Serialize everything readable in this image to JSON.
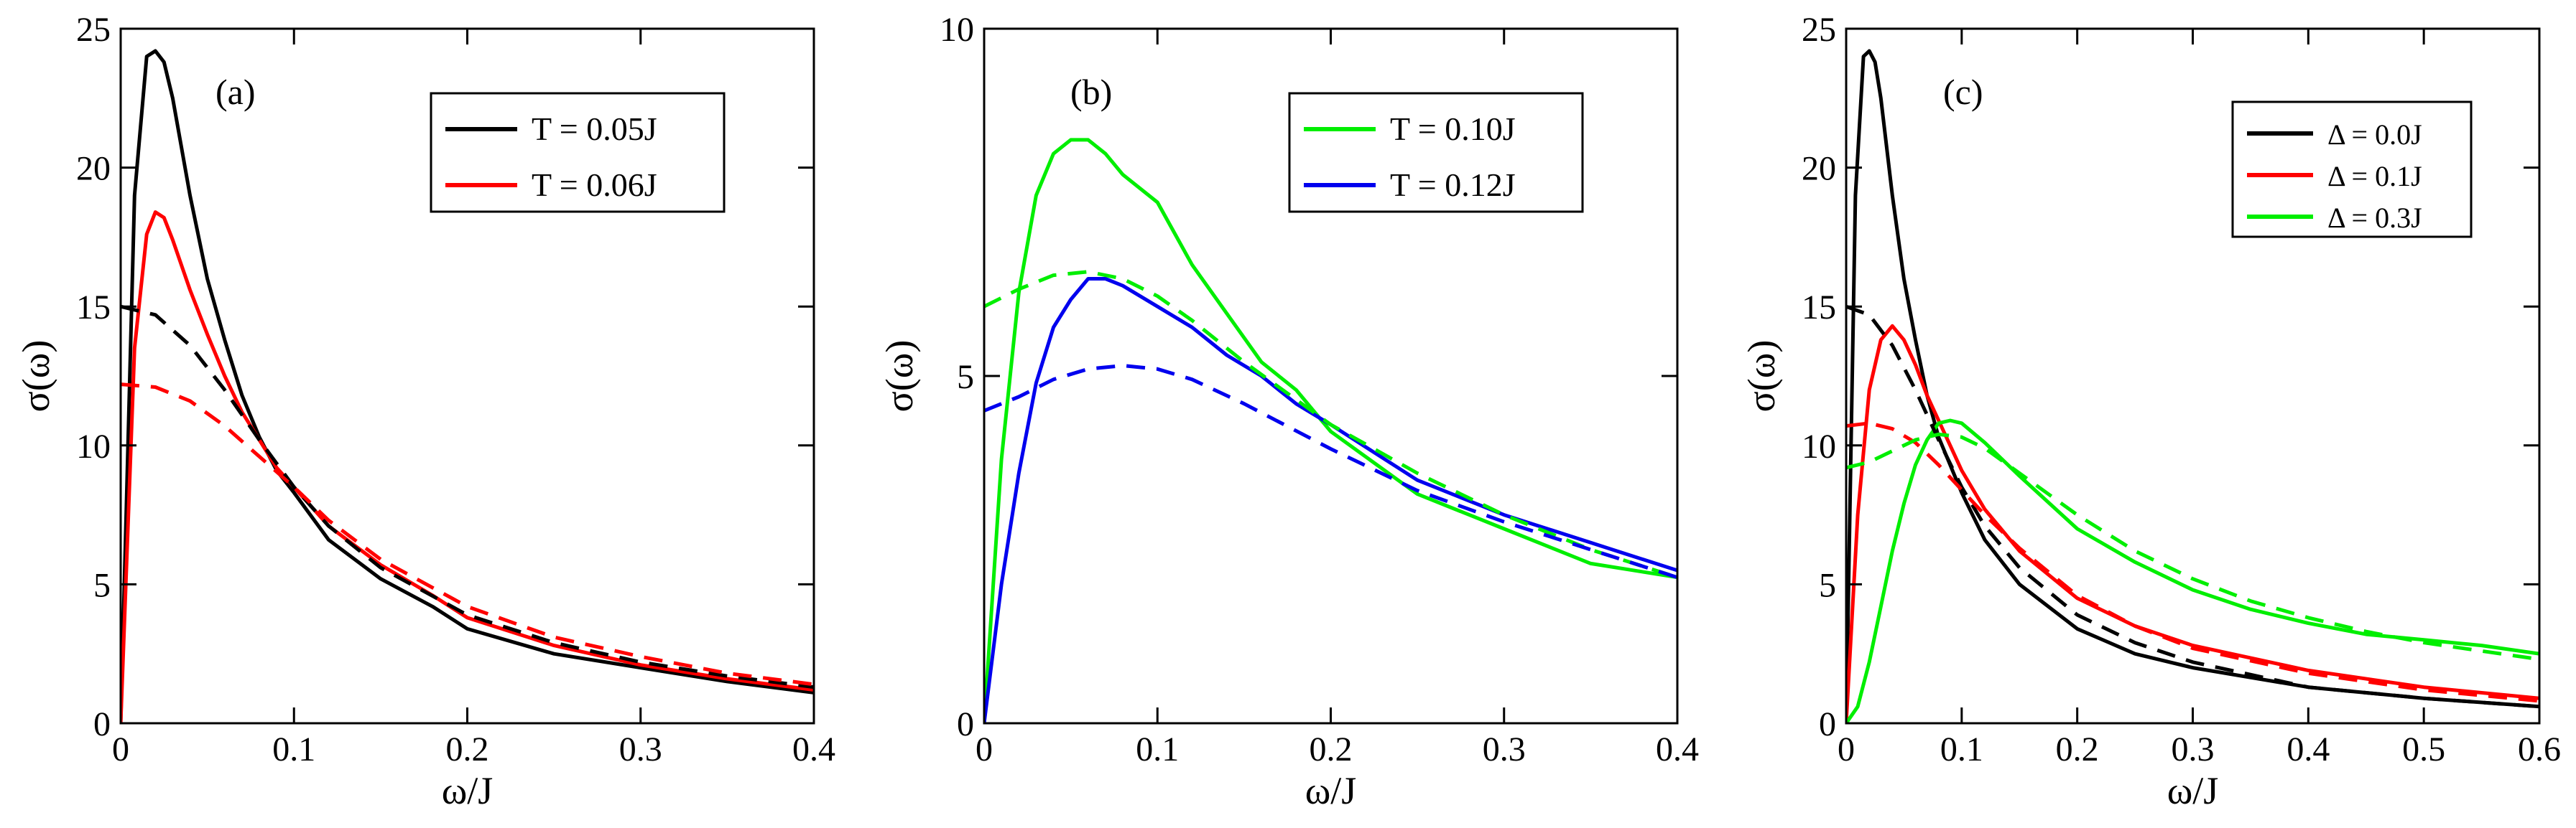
{
  "chart_data": [
    {
      "type": "line",
      "panel_label": "(a)",
      "xlabel": "ω/J",
      "ylabel": "σ(ω)",
      "xlim": [
        0,
        0.4
      ],
      "ylim": [
        0,
        25
      ],
      "xticks": [
        0,
        0.1,
        0.2,
        0.3,
        0.4
      ],
      "xtick_labels": [
        "0",
        "0.1",
        "0.2",
        "0.3",
        "0.4"
      ],
      "yticks": [
        0,
        5,
        10,
        15,
        20,
        25
      ],
      "ytick_labels": [
        "0",
        "5",
        "10",
        "15",
        "20",
        "25"
      ],
      "legend_position": "top-right",
      "series": [
        {
          "name": "T = 0.05J",
          "legend": true,
          "style": "solid",
          "color": "#000000",
          "x": [
            0,
            0.008,
            0.015,
            0.02,
            0.025,
            0.03,
            0.04,
            0.05,
            0.06,
            0.07,
            0.08,
            0.09,
            0.1,
            0.12,
            0.15,
            0.18,
            0.2,
            0.25,
            0.3,
            0.35,
            0.4
          ],
          "y": [
            0,
            19,
            24,
            24.2,
            23.8,
            22.5,
            19,
            16,
            13.8,
            11.8,
            10.3,
            9.1,
            8.3,
            6.6,
            5.2,
            4.2,
            3.4,
            2.5,
            2.0,
            1.5,
            1.1
          ]
        },
        {
          "name": "T = 0.06J",
          "legend": true,
          "style": "solid",
          "color": "#ff0000",
          "x": [
            0,
            0.008,
            0.015,
            0.02,
            0.025,
            0.03,
            0.04,
            0.05,
            0.06,
            0.07,
            0.08,
            0.09,
            0.1,
            0.12,
            0.15,
            0.18,
            0.2,
            0.25,
            0.3,
            0.35,
            0.4
          ],
          "y": [
            0,
            13.5,
            17.6,
            18.4,
            18.2,
            17.4,
            15.6,
            14,
            12.5,
            11.2,
            10.2,
            9.2,
            8.5,
            7.1,
            5.7,
            4.6,
            3.8,
            2.8,
            2.1,
            1.6,
            1.2
          ]
        },
        {
          "name": "T = 0.05J fit",
          "legend": false,
          "style": "dashed",
          "color": "#000000",
          "x": [
            0,
            0.02,
            0.04,
            0.06,
            0.08,
            0.1,
            0.12,
            0.15,
            0.2,
            0.25,
            0.3,
            0.35,
            0.4
          ],
          "y": [
            15,
            14.7,
            13.6,
            12,
            10.2,
            8.5,
            7.1,
            5.6,
            3.9,
            2.9,
            2.2,
            1.7,
            1.3
          ]
        },
        {
          "name": "T = 0.06J fit",
          "legend": false,
          "style": "dashed",
          "color": "#ff0000",
          "x": [
            0,
            0.02,
            0.04,
            0.06,
            0.08,
            0.1,
            0.12,
            0.15,
            0.2,
            0.25,
            0.3,
            0.35,
            0.4
          ],
          "y": [
            12.2,
            12.1,
            11.6,
            10.7,
            9.6,
            8.5,
            7.3,
            5.9,
            4.2,
            3.1,
            2.4,
            1.8,
            1.4
          ]
        }
      ]
    },
    {
      "type": "line",
      "panel_label": "(b)",
      "xlabel": "ω/J",
      "ylabel": "σ(ω)",
      "xlim": [
        0,
        0.4
      ],
      "ylim": [
        0,
        10
      ],
      "xticks": [
        0,
        0.1,
        0.2,
        0.3,
        0.4
      ],
      "xtick_labels": [
        "0",
        "0.1",
        "0.2",
        "0.3",
        "0.4"
      ],
      "yticks": [
        0,
        5,
        10
      ],
      "ytick_labels": [
        "0",
        "5",
        "10"
      ],
      "legend_position": "top-right",
      "series": [
        {
          "name": "T = 0.10J",
          "legend": true,
          "style": "solid",
          "color": "#00ee00",
          "x": [
            0,
            0.01,
            0.02,
            0.03,
            0.04,
            0.05,
            0.06,
            0.07,
            0.08,
            0.1,
            0.12,
            0.14,
            0.16,
            0.18,
            0.2,
            0.25,
            0.3,
            0.35,
            0.4
          ],
          "y": [
            0,
            3.8,
            6.2,
            7.6,
            8.2,
            8.4,
            8.4,
            8.2,
            7.9,
            7.5,
            6.6,
            5.9,
            5.2,
            4.8,
            4.2,
            3.3,
            2.8,
            2.3,
            2.1
          ]
        },
        {
          "name": "T = 0.12J",
          "legend": true,
          "style": "solid",
          "color": "#0000ee",
          "x": [
            0,
            0.01,
            0.02,
            0.03,
            0.04,
            0.05,
            0.06,
            0.07,
            0.08,
            0.1,
            0.12,
            0.14,
            0.16,
            0.18,
            0.2,
            0.25,
            0.3,
            0.35,
            0.4
          ],
          "y": [
            0,
            2.0,
            3.6,
            4.9,
            5.7,
            6.1,
            6.4,
            6.4,
            6.3,
            6.0,
            5.7,
            5.3,
            5.0,
            4.6,
            4.3,
            3.5,
            3.0,
            2.6,
            2.2
          ]
        },
        {
          "name": "T = 0.10J fit",
          "legend": false,
          "style": "dashed",
          "color": "#00ee00",
          "x": [
            0,
            0.02,
            0.04,
            0.06,
            0.08,
            0.1,
            0.12,
            0.15,
            0.2,
            0.25,
            0.3,
            0.35,
            0.4
          ],
          "y": [
            6.0,
            6.25,
            6.45,
            6.5,
            6.4,
            6.15,
            5.8,
            5.2,
            4.3,
            3.6,
            3.0,
            2.5,
            2.1
          ]
        },
        {
          "name": "T = 0.12J fit",
          "legend": false,
          "style": "dashed",
          "color": "#0000ee",
          "x": [
            0,
            0.02,
            0.04,
            0.06,
            0.08,
            0.1,
            0.12,
            0.15,
            0.2,
            0.25,
            0.3,
            0.35,
            0.4
          ],
          "y": [
            4.5,
            4.7,
            4.95,
            5.1,
            5.15,
            5.1,
            4.95,
            4.6,
            3.95,
            3.35,
            2.9,
            2.5,
            2.1
          ]
        }
      ]
    },
    {
      "type": "line",
      "panel_label": "(c)",
      "xlabel": "ω/J",
      "ylabel": "σ(ω)",
      "xlim": [
        0,
        0.6
      ],
      "ylim": [
        0,
        25
      ],
      "xticks": [
        0,
        0.1,
        0.2,
        0.3,
        0.4,
        0.5,
        0.6
      ],
      "xtick_labels": [
        "0",
        "0.1",
        "0.2",
        "0.3",
        "0.4",
        "0.5",
        "0.6"
      ],
      "yticks": [
        0,
        5,
        10,
        15,
        20,
        25
      ],
      "ytick_labels": [
        "0",
        "5",
        "10",
        "15",
        "20",
        "25"
      ],
      "legend_position": "top-right",
      "series": [
        {
          "name": "Δ = 0.0J",
          "legend": true,
          "style": "solid",
          "color": "#000000",
          "x": [
            0,
            0.008,
            0.015,
            0.02,
            0.025,
            0.03,
            0.04,
            0.05,
            0.06,
            0.07,
            0.08,
            0.1,
            0.12,
            0.15,
            0.2,
            0.25,
            0.3,
            0.4,
            0.5,
            0.6
          ],
          "y": [
            0,
            19,
            24,
            24.2,
            23.8,
            22.5,
            19,
            16,
            13.8,
            11.8,
            10.3,
            8.3,
            6.6,
            5.0,
            3.4,
            2.5,
            2.0,
            1.3,
            0.9,
            0.6
          ]
        },
        {
          "name": "Δ = 0.1J",
          "legend": true,
          "style": "solid",
          "color": "#ff0000",
          "x": [
            0,
            0.01,
            0.02,
            0.03,
            0.04,
            0.05,
            0.06,
            0.07,
            0.08,
            0.09,
            0.1,
            0.12,
            0.15,
            0.2,
            0.25,
            0.3,
            0.4,
            0.5,
            0.6
          ],
          "y": [
            0,
            7.5,
            12,
            13.8,
            14.3,
            13.8,
            12.9,
            11.8,
            10.9,
            10,
            9.1,
            7.7,
            6.2,
            4.5,
            3.5,
            2.8,
            1.9,
            1.3,
            0.9
          ]
        },
        {
          "name": "Δ = 0.3J",
          "legend": true,
          "style": "solid",
          "color": "#00ee00",
          "x": [
            0,
            0.01,
            0.02,
            0.03,
            0.04,
            0.05,
            0.06,
            0.07,
            0.08,
            0.09,
            0.1,
            0.12,
            0.15,
            0.2,
            0.25,
            0.3,
            0.35,
            0.4,
            0.45,
            0.5,
            0.55,
            0.6
          ],
          "y": [
            0,
            0.6,
            2.2,
            4.2,
            6.2,
            7.9,
            9.3,
            10.2,
            10.8,
            10.9,
            10.8,
            10.1,
            8.9,
            7.0,
            5.8,
            4.8,
            4.1,
            3.6,
            3.2,
            3.0,
            2.8,
            2.5
          ]
        },
        {
          "name": "Δ = 0.0J fit",
          "legend": false,
          "style": "dashed",
          "color": "#000000",
          "x": [
            0,
            0.02,
            0.04,
            0.06,
            0.08,
            0.1,
            0.12,
            0.15,
            0.2,
            0.25,
            0.3,
            0.4,
            0.5,
            0.6
          ],
          "y": [
            15,
            14.7,
            13.6,
            12,
            10.2,
            8.5,
            7.1,
            5.6,
            3.9,
            2.9,
            2.2,
            1.3,
            0.9,
            0.6
          ]
        },
        {
          "name": "Δ = 0.1J fit",
          "legend": false,
          "style": "dashed",
          "color": "#ff0000",
          "x": [
            0,
            0.02,
            0.04,
            0.06,
            0.08,
            0.1,
            0.12,
            0.15,
            0.2,
            0.25,
            0.3,
            0.4,
            0.5,
            0.6
          ],
          "y": [
            10.7,
            10.8,
            10.6,
            10.1,
            9.3,
            8.4,
            7.5,
            6.3,
            4.6,
            3.5,
            2.7,
            1.8,
            1.2,
            0.8
          ]
        },
        {
          "name": "Δ = 0.3J fit",
          "legend": false,
          "style": "dashed",
          "color": "#00ee00",
          "x": [
            0,
            0.02,
            0.04,
            0.06,
            0.08,
            0.1,
            0.12,
            0.15,
            0.2,
            0.25,
            0.3,
            0.35,
            0.4,
            0.45,
            0.5,
            0.55,
            0.6
          ],
          "y": [
            9.2,
            9.4,
            9.8,
            10.2,
            10.4,
            10.3,
            9.9,
            9.0,
            7.5,
            6.2,
            5.2,
            4.4,
            3.8,
            3.3,
            2.9,
            2.6,
            2.3
          ]
        }
      ]
    }
  ]
}
